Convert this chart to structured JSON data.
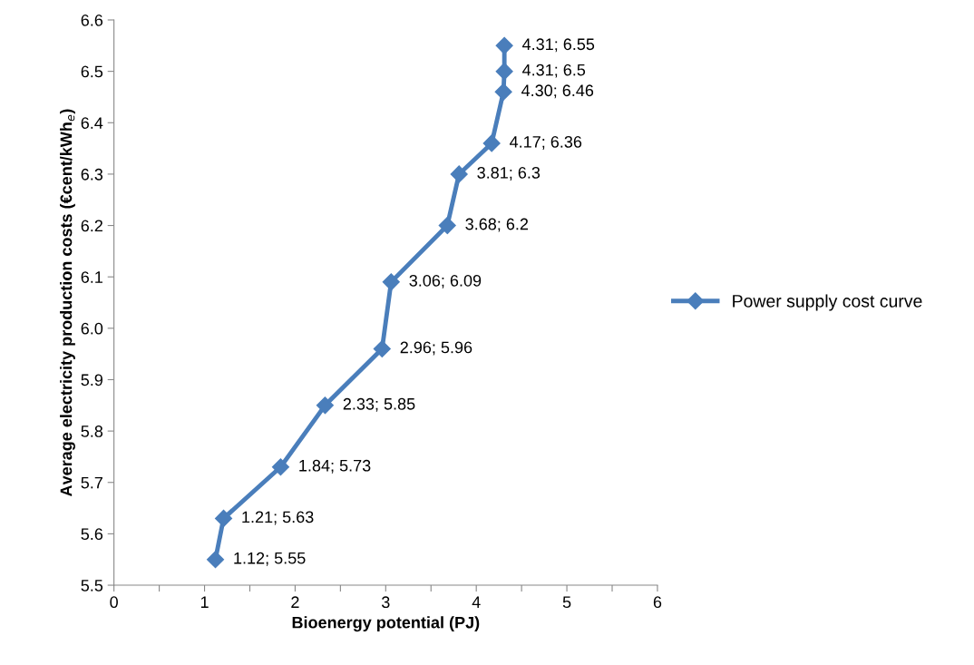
{
  "chart_data": {
    "type": "line",
    "xlabel": "Bioenergy potential (PJ)",
    "ylabel": "Average electricity production costs (€cent/kWh$_{e}$)",
    "x": [
      1.12,
      1.21,
      1.84,
      2.33,
      2.96,
      3.06,
      3.68,
      3.81,
      4.17,
      4.3,
      4.31,
      4.31
    ],
    "series": [
      {
        "name": "Power supply cost curve",
        "color": "#4a7ebb",
        "values": [
          5.55,
          5.63,
          5.73,
          5.85,
          5.96,
          6.09,
          6.2,
          6.3,
          6.36,
          6.46,
          6.5,
          6.55
        ],
        "value_labels": [
          "1.12; 5.55",
          "1.21; 5.63",
          "1.84; 5.73",
          "2.33; 5.85",
          "2.96; 5.96",
          "3.06; 6.09",
          "3.68; 6.2",
          "3.81; 6.3",
          "4.17; 6.36",
          "4.30; 6.46",
          "4.31; 6.5",
          "4.31; 6.55"
        ]
      }
    ],
    "xlim": [
      0,
      6
    ],
    "xticks": [
      0,
      {
        "value": 0.5,
        "label": null
      },
      1,
      {
        "value": 1.5,
        "label": null
      },
      2,
      {
        "value": 2.5,
        "label": null
      },
      3,
      {
        "value": 3.5,
        "label": null
      },
      4,
      {
        "value": 4.5,
        "label": null
      },
      5,
      {
        "value": 5.5,
        "label": null
      },
      6
    ],
    "ylim": [
      5.5,
      6.6
    ],
    "yticks": [
      {
        "value": 5.5,
        "label": "5.5"
      },
      {
        "value": 5.6,
        "label": "5.6"
      },
      {
        "value": 5.7,
        "label": "5.7"
      },
      {
        "value": 5.8,
        "label": "5.8"
      },
      {
        "value": 5.9,
        "label": "5.9"
      },
      {
        "value": 6.0,
        "label": "6.0"
      },
      {
        "value": 6.1,
        "label": "6.1"
      },
      {
        "value": 6.2,
        "label": "6.2"
      },
      {
        "value": 6.3,
        "label": "6.3"
      },
      {
        "value": 6.4,
        "label": "6.4"
      },
      {
        "value": 6.5,
        "label": "6.5"
      },
      {
        "value": 6.6,
        "label": "6.6"
      }
    ],
    "marker": "diamond",
    "line_style": "solid",
    "legend": "right",
    "grid": false
  }
}
